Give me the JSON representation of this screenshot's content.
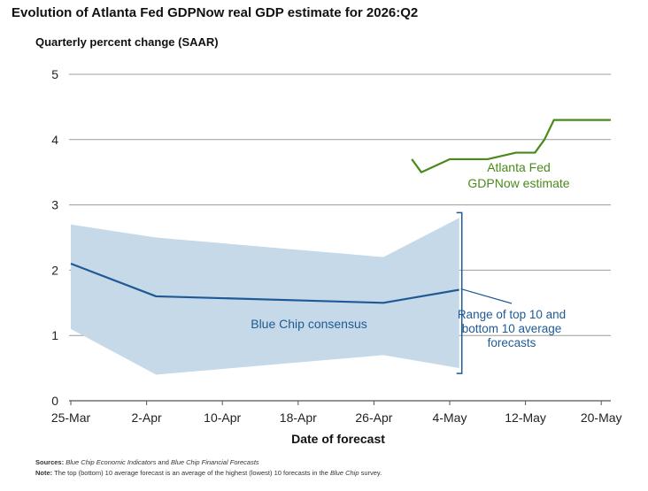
{
  "chart_data": {
    "type": "line",
    "title": "Evolution of Atlanta Fed GDPNow real GDP estimate for 2026:Q2",
    "ylabel": "Quarterly percent change (SAAR)",
    "xlabel": "Date of forecast",
    "ylim": [
      0,
      5
    ],
    "yticks": [
      "0",
      "1",
      "2",
      "3",
      "4",
      "5"
    ],
    "x_ticks": [
      {
        "label": "25-Mar",
        "date": "2026-03-25"
      },
      {
        "label": "2-Apr",
        "date": "2026-04-02"
      },
      {
        "label": "10-Apr",
        "date": "2026-04-10"
      },
      {
        "label": "18-Apr",
        "date": "2026-04-18"
      },
      {
        "label": "26-Apr",
        "date": "2026-04-26"
      },
      {
        "label": "4-May",
        "date": "2026-05-04"
      },
      {
        "label": "12-May",
        "date": "2026-05-12"
      },
      {
        "label": "20-May",
        "date": "2026-05-20"
      }
    ],
    "xlim": [
      "2026-03-25",
      "2026-05-22"
    ],
    "grid": "horizontal",
    "series": [
      {
        "name": "Atlanta Fed GDPNow estimate",
        "label_lines": [
          "Atlanta Fed",
          "GDPNow estimate"
        ],
        "color": "#4a8a1c",
        "points": [
          {
            "x": "2026-04-30",
            "y": 3.7
          },
          {
            "x": "2026-05-01",
            "y": 3.5
          },
          {
            "x": "2026-05-04",
            "y": 3.7
          },
          {
            "x": "2026-05-08",
            "y": 3.7
          },
          {
            "x": "2026-05-11",
            "y": 3.8
          },
          {
            "x": "2026-05-13",
            "y": 3.8
          },
          {
            "x": "2026-05-14",
            "y": 4.0
          },
          {
            "x": "2026-05-15",
            "y": 4.3
          },
          {
            "x": "2026-05-21",
            "y": 4.3
          }
        ]
      },
      {
        "name": "Blue Chip consensus",
        "color": "#1f5a96",
        "points": [
          {
            "x": "2026-03-25",
            "y": 2.1
          },
          {
            "x": "2026-04-03",
            "y": 1.6
          },
          {
            "x": "2026-04-27",
            "y": 1.5
          },
          {
            "x": "2026-05-05",
            "y": 1.7
          }
        ]
      }
    ],
    "band": {
      "name": "Range of top 10 and bottom 10 average forecasts",
      "label_lines": [
        "Range of top 10 and",
        "bottom 10 average",
        "forecasts"
      ],
      "color": "#c5d9e8",
      "upper": [
        {
          "x": "2026-03-25",
          "y": 2.7
        },
        {
          "x": "2026-04-03",
          "y": 2.5
        },
        {
          "x": "2026-04-27",
          "y": 2.2
        },
        {
          "x": "2026-05-05",
          "y": 2.8
        }
      ],
      "lower": [
        {
          "x": "2026-03-25",
          "y": 1.1
        },
        {
          "x": "2026-04-03",
          "y": 0.4
        },
        {
          "x": "2026-04-27",
          "y": 0.7
        },
        {
          "x": "2026-05-05",
          "y": 0.5
        }
      ]
    }
  },
  "notes": {
    "sources_label": "Sources:",
    "sources_part1": "Blue Chip Economic Indicators",
    "sources_part2": " and ",
    "sources_part3": "Blue Chip Financial Forecasts",
    "note_label": "Note:",
    "note_part1": " The top (bottom) 10 average forecast is an average of the highest (lowest) 10 forecasts in the ",
    "note_part2": "Blue Chip",
    "note_part3": " survey."
  }
}
